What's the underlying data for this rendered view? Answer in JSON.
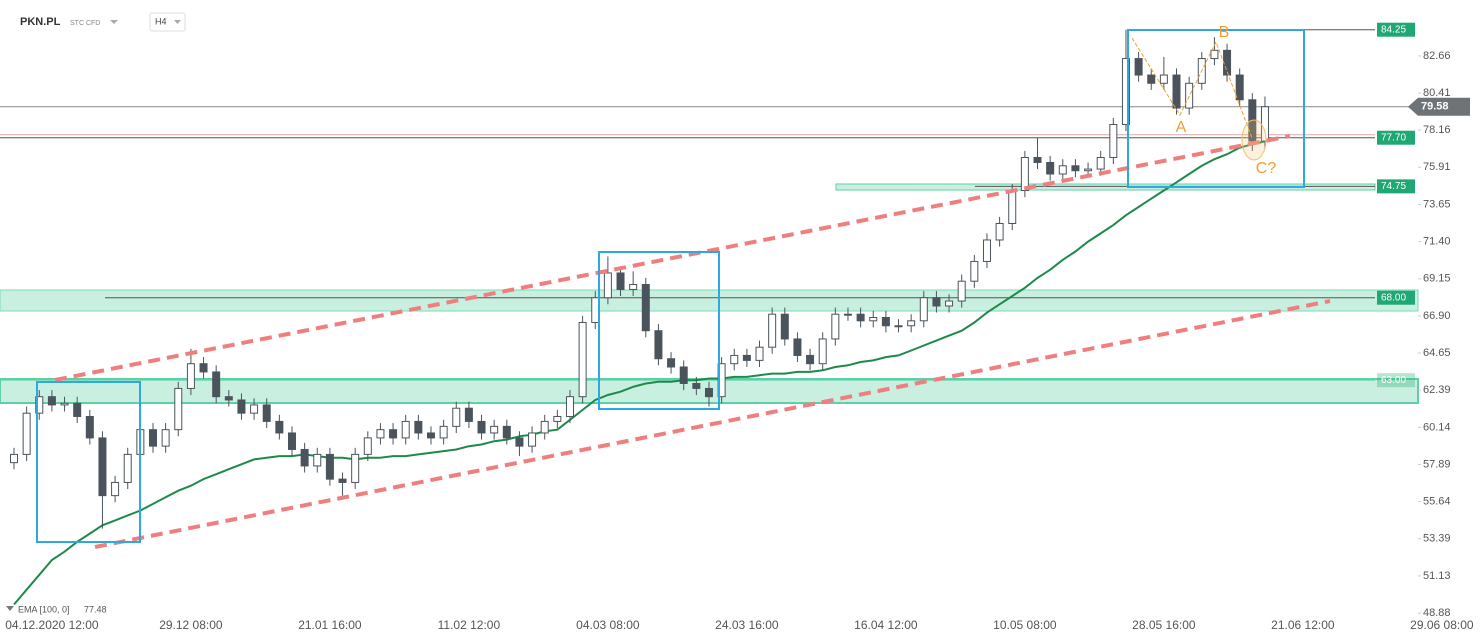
{
  "chart_data": {
    "type": "candlestick",
    "title": "PKN.PL",
    "instrument_type": "STC CFD",
    "interval": "H4",
    "categories": [
      null,
      null,
      null,
      "04.12.2020 12:00",
      null,
      null,
      null,
      null,
      null,
      null,
      null,
      null,
      null,
      null,
      "29.12 08:00",
      null,
      null,
      null,
      null,
      null,
      null,
      null,
      null,
      null,
      null,
      "21.01 16:00",
      null,
      null,
      null,
      null,
      null,
      null,
      null,
      null,
      null,
      null,
      "11.02 12:00",
      null,
      null,
      null,
      null,
      null,
      null,
      null,
      null,
      null,
      null,
      "04.03 08:00",
      null,
      null,
      null,
      null,
      null,
      null,
      null,
      null,
      null,
      null,
      "24.03 16:00",
      null,
      null,
      null,
      null,
      null,
      null,
      null,
      null,
      null,
      null,
      "16.04 12:00",
      null,
      null,
      null,
      null,
      null,
      null,
      null,
      null,
      null,
      null,
      "10.05 08:00",
      null,
      null,
      null,
      null,
      null,
      null,
      null,
      null,
      null,
      null,
      "28.05 16:00",
      null,
      null,
      null,
      null,
      null,
      null,
      null,
      null,
      null,
      null,
      "21.06 12:00",
      null,
      null,
      null,
      null,
      null,
      null,
      null,
      null,
      null,
      null,
      "29.06 08:00"
    ],
    "open": [
      58.0,
      58.5,
      61.0,
      62.0,
      61.5,
      61.6,
      60.8,
      59.5,
      56.0,
      56.8,
      58.5,
      60.0,
      59.0,
      60.0,
      62.5,
      64.0,
      63.5,
      62.0,
      61.8,
      61.0,
      61.5,
      60.5,
      59.8,
      58.8,
      57.8,
      58.5,
      57.0,
      56.8,
      58.5,
      59.5,
      60.0,
      59.5,
      60.5,
      59.8,
      59.5,
      60.2,
      61.3,
      60.5,
      59.8,
      60.2,
      59.5,
      59.0,
      59.8,
      60.5,
      60.8,
      62.0,
      66.5,
      68.0,
      69.5,
      68.5,
      68.8,
      66.0,
      64.3,
      63.8,
      62.8,
      62.5,
      62.0,
      64.0,
      64.5,
      64.2,
      65.0,
      67.0,
      65.5,
      64.5,
      64.0,
      65.5,
      67.0,
      67.0,
      66.6,
      66.8,
      66.3,
      66.3,
      66.6,
      68.0,
      67.5,
      67.8,
      69.0,
      70.2,
      71.5,
      72.5,
      74.5,
      76.5,
      76.2,
      75.5,
      76.0,
      75.7,
      75.8,
      76.5,
      78.5,
      82.5,
      81.5,
      81.0,
      81.5,
      79.5,
      81.0,
      82.5,
      83.0,
      81.5,
      80.0,
      77.5,
      null,
      null,
      null,
      null,
      null,
      null,
      null,
      null,
      null,
      null,
      null,
      null,
      null,
      null
    ],
    "high": [
      58.9,
      61.4,
      62.4,
      62.4,
      62.0,
      62.0,
      61.2,
      59.9,
      57.2,
      58.9,
      60.4,
      60.4,
      60.4,
      62.9,
      64.9,
      64.4,
      63.9,
      62.4,
      62.2,
      61.9,
      61.9,
      60.9,
      60.2,
      59.2,
      58.9,
      58.9,
      57.4,
      58.9,
      59.9,
      60.4,
      60.4,
      60.9,
      60.9,
      60.2,
      60.6,
      61.7,
      61.7,
      60.9,
      60.6,
      60.6,
      59.9,
      60.2,
      60.9,
      61.2,
      62.4,
      66.9,
      68.4,
      70.5,
      69.9,
      69.6,
      69.2,
      66.4,
      64.7,
      64.2,
      63.2,
      62.9,
      64.4,
      64.9,
      64.9,
      65.4,
      67.4,
      67.4,
      65.9,
      64.9,
      65.9,
      67.4,
      67.4,
      67.4,
      67.2,
      67.2,
      66.7,
      67.0,
      68.4,
      68.4,
      68.2,
      69.4,
      70.6,
      71.9,
      72.9,
      74.9,
      76.9,
      77.7,
      76.6,
      76.4,
      76.4,
      76.2,
      76.9,
      78.9,
      84.25,
      82.9,
      81.9,
      82.6,
      81.9,
      81.4,
      82.9,
      83.8,
      83.4,
      81.9,
      80.4,
      80.2,
      null,
      null,
      null,
      null,
      null,
      null,
      null,
      null,
      null,
      null,
      null,
      null,
      null,
      null
    ],
    "low": [
      57.6,
      58.1,
      60.6,
      61.1,
      61.1,
      60.4,
      59.1,
      54.0,
      55.6,
      56.4,
      58.1,
      58.6,
      58.6,
      59.6,
      62.1,
      63.1,
      61.6,
      61.4,
      60.6,
      60.6,
      60.1,
      59.4,
      58.4,
      57.4,
      57.4,
      56.6,
      56.0,
      56.4,
      58.1,
      59.1,
      59.1,
      59.1,
      59.4,
      59.1,
      59.1,
      59.8,
      60.1,
      59.4,
      59.4,
      59.1,
      58.4,
      58.6,
      59.4,
      60.1,
      60.4,
      61.6,
      66.1,
      67.6,
      68.1,
      68.1,
      65.6,
      63.9,
      63.4,
      62.4,
      62.1,
      61.4,
      61.6,
      63.6,
      63.8,
      63.8,
      64.6,
      65.1,
      64.1,
      63.6,
      63.6,
      65.1,
      66.6,
      66.2,
      66.2,
      65.9,
      65.9,
      65.9,
      66.2,
      67.1,
      67.1,
      67.4,
      68.6,
      69.8,
      71.1,
      72.1,
      74.1,
      75.8,
      75.1,
      75.1,
      75.3,
      75.3,
      75.4,
      76.1,
      78.1,
      81.1,
      80.6,
      80.6,
      79.1,
      79.1,
      80.6,
      82.1,
      81.1,
      79.6,
      76.9,
      77.1,
      null,
      null,
      null,
      null,
      null,
      null,
      null,
      null,
      null,
      null,
      null,
      null,
      null,
      null
    ],
    "close": [
      58.5,
      61.0,
      62.0,
      61.5,
      61.6,
      60.8,
      59.5,
      56.0,
      56.8,
      58.5,
      60.0,
      59.0,
      60.0,
      62.5,
      64.0,
      63.5,
      62.0,
      61.8,
      61.0,
      61.5,
      60.5,
      59.8,
      58.8,
      57.8,
      58.5,
      57.0,
      56.8,
      58.5,
      59.5,
      60.0,
      59.5,
      60.5,
      59.8,
      59.5,
      60.2,
      61.3,
      60.5,
      59.8,
      60.2,
      59.5,
      59.0,
      59.8,
      60.5,
      60.8,
      62.0,
      66.5,
      68.0,
      69.5,
      68.5,
      68.8,
      66.0,
      64.3,
      63.8,
      62.8,
      62.5,
      62.0,
      64.0,
      64.5,
      64.2,
      65.0,
      67.0,
      65.5,
      64.5,
      64.0,
      65.5,
      67.0,
      67.0,
      66.6,
      66.8,
      66.3,
      66.3,
      66.6,
      68.0,
      67.5,
      67.8,
      69.0,
      70.2,
      71.5,
      72.5,
      74.5,
      76.5,
      76.2,
      75.5,
      76.0,
      75.7,
      75.8,
      76.5,
      78.5,
      82.5,
      81.5,
      81.0,
      81.5,
      79.5,
      81.0,
      82.5,
      83.0,
      81.5,
      80.0,
      77.5,
      79.58,
      null,
      null,
      null,
      null,
      null,
      null,
      null,
      null,
      null,
      null,
      null,
      null,
      null,
      null
    ],
    "ema": {
      "name": "EMA [100, 0]",
      "color": "#1e8a4a",
      "values": [
        49.4,
        50.3,
        51.2,
        52.1,
        52.6,
        53.2,
        53.7,
        54.2,
        54.5,
        54.8,
        55.1,
        55.5,
        55.9,
        56.3,
        56.6,
        57.0,
        57.3,
        57.6,
        57.9,
        58.2,
        58.3,
        58.4,
        58.4,
        58.5,
        58.4,
        58.3,
        58.3,
        58.2,
        58.3,
        58.3,
        58.4,
        58.4,
        58.5,
        58.6,
        58.7,
        58.8,
        59.0,
        59.1,
        59.3,
        59.4,
        59.6,
        59.7,
        59.9,
        60.0,
        60.6,
        61.2,
        61.8,
        62.1,
        62.3,
        62.6,
        62.8,
        62.9,
        62.9,
        63.0,
        63.0,
        63.1,
        63.1,
        63.2,
        63.2,
        63.3,
        63.4,
        63.4,
        63.5,
        63.5,
        63.6,
        63.8,
        63.9,
        64.1,
        64.2,
        64.4,
        64.5,
        64.8,
        65.1,
        65.4,
        65.7,
        66.0,
        66.5,
        67.1,
        67.6,
        68.1,
        68.6,
        69.2,
        69.7,
        70.3,
        70.8,
        71.4,
        71.9,
        72.4,
        73.0,
        73.5,
        74.0,
        74.5,
        75.0,
        75.5,
        76.0,
        76.4,
        76.7,
        77.1,
        77.3,
        77.48,
        null,
        null,
        null,
        null,
        null,
        null,
        null,
        null,
        null,
        null,
        null,
        null,
        null,
        null
      ]
    },
    "last_price": 79.58,
    "levels": [
      84.25,
      {
        "value": 77.7,
        "label": "77.70"
      },
      74.75,
      {
        "value": 68,
        "label": "68.00"
      },
      {
        "value": 63,
        "label": "63.00"
      }
    ],
    "annotations": [
      "A",
      "B",
      "C?"
    ],
    "ylim": [
      48.46,
      86.05
    ],
    "yticks": [
      48.88,
      51.13,
      53.39,
      55.64,
      57.89,
      60.14,
      62.39,
      64.65,
      {
        "value": 66.9,
        "label": "66.90"
      },
      69.15,
      {
        "value": 71.4,
        "label": "71.40"
      },
      73.65,
      75.91,
      78.16,
      80.41,
      82.66
    ]
  }
}
